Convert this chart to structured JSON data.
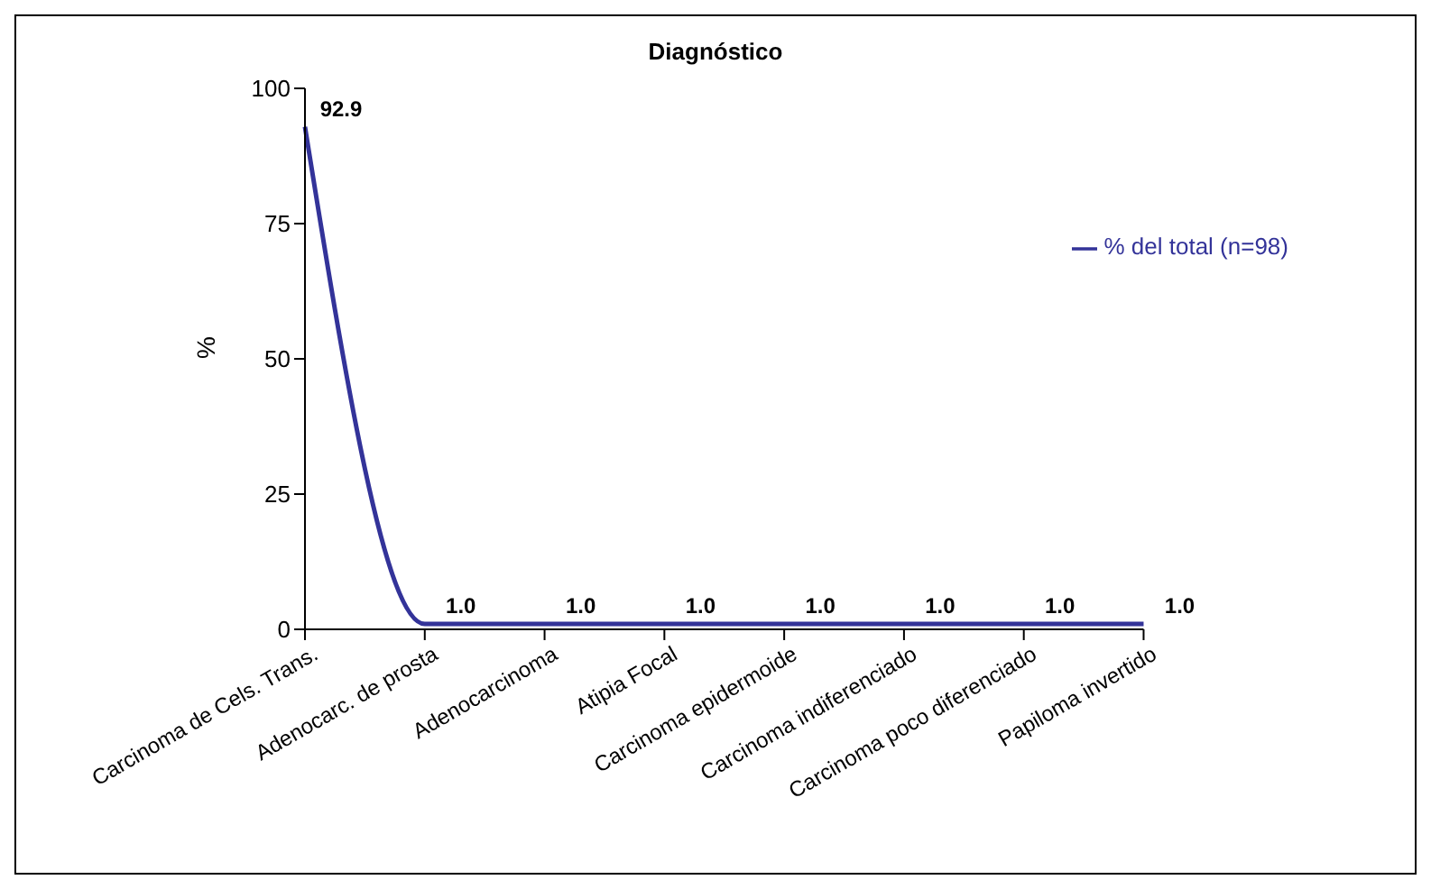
{
  "chart_data": {
    "type": "line",
    "title": "Diagnóstico",
    "ylabel": "%",
    "categories": [
      "Carcinoma de Cels. Trans.",
      "Adenocarc. de prosta",
      "Adenocarcinoma",
      "Atipia Focal",
      "Carcinoma epidermoide",
      "Carcinoma indiferenciado",
      "Carcinoma poco diferenciado",
      "Papiloma invertido"
    ],
    "series": [
      {
        "name": "% del total (n=98)",
        "color": "#333399",
        "values": [
          92.9,
          1.0,
          1.0,
          1.0,
          1.0,
          1.0,
          1.0,
          1.0
        ],
        "value_labels": [
          "92.9",
          "1.0",
          "1.0",
          "1.0",
          "1.0",
          "1.0",
          "1.0",
          "1.0"
        ]
      }
    ],
    "ylim": [
      0,
      100
    ],
    "yticks": [
      0,
      25,
      50,
      75,
      100
    ],
    "grid": false,
    "legend": "top right",
    "marker": "none",
    "line_style": "solid"
  }
}
